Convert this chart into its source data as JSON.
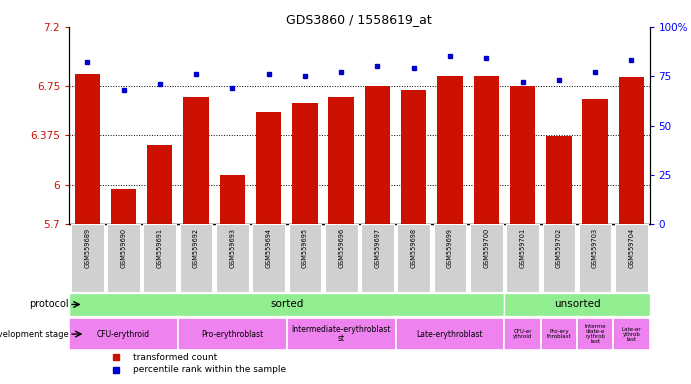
{
  "title": "GDS3860 / 1558619_at",
  "samples": [
    "GSM559689",
    "GSM559690",
    "GSM559691",
    "GSM559692",
    "GSM559693",
    "GSM559694",
    "GSM559695",
    "GSM559696",
    "GSM559697",
    "GSM559698",
    "GSM559699",
    "GSM559700",
    "GSM559701",
    "GSM559702",
    "GSM559703",
    "GSM559704"
  ],
  "red_values": [
    6.84,
    5.97,
    6.3,
    6.67,
    6.07,
    6.55,
    6.62,
    6.67,
    6.75,
    6.72,
    6.83,
    6.83,
    6.75,
    6.37,
    6.65,
    6.82
  ],
  "blue_values": [
    82,
    68,
    71,
    76,
    69,
    76,
    75,
    77,
    80,
    79,
    85,
    84,
    72,
    73,
    77,
    83
  ],
  "ylim_left": [
    5.7,
    7.2
  ],
  "ylim_right": [
    0,
    100
  ],
  "yticks_left": [
    5.7,
    6.0,
    6.375,
    6.75,
    7.2
  ],
  "ytick_labels_left": [
    "5.7",
    "6",
    "6.375",
    "6.75",
    "7.2"
  ],
  "yticks_right": [
    0,
    25,
    50,
    75,
    100
  ],
  "ytick_labels_right": [
    "0",
    "25",
    "50",
    "75",
    "100%"
  ],
  "hlines": [
    6.0,
    6.375,
    6.75
  ],
  "bar_color": "#CC1100",
  "dot_color": "#0000CC",
  "protocol_color": "#90EE90",
  "dev_color": "#EE82EE",
  "legend_red": "transformed count",
  "legend_blue": "percentile rank within the sample",
  "tick_bg": "#D0D0D0",
  "sorted_count": 12,
  "unsorted_count": 4,
  "dev_sorted_labels": [
    "CFU-erythroid",
    "Pro-erythroblast",
    "Intermediate-erythroblast\nst",
    "Late-erythroblast"
  ],
  "dev_sorted_counts": [
    3,
    3,
    3,
    3
  ],
  "dev_unsorted_labels": [
    "CFU-er\nythroid",
    "Pro-ery\nthroblast",
    "Interme\ndiate-e\nrythrob\nlast",
    "Late-er\nythrob\nlast"
  ],
  "dev_unsorted_counts": [
    1,
    1,
    1,
    1
  ]
}
